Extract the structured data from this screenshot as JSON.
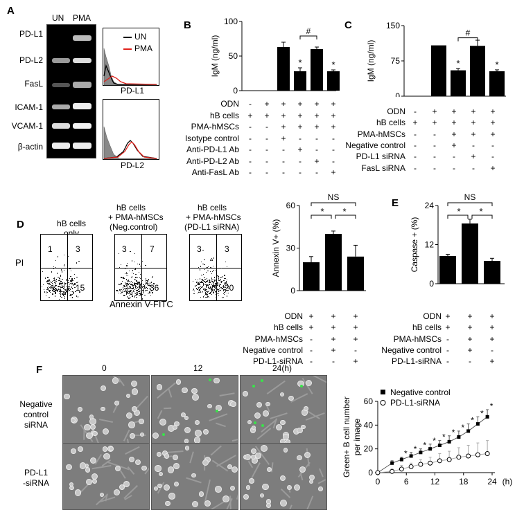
{
  "panels": {
    "A": "A",
    "B": "B",
    "C": "C",
    "D": "D",
    "E": "E",
    "F": "F"
  },
  "panel_a": {
    "columns": [
      "UN",
      "PMA"
    ],
    "genes": [
      "PD-L1",
      "PD-L2",
      "FasL",
      "ICAM-1",
      "VCAM-1",
      "β-actin"
    ],
    "hist_legend": [
      "UN",
      "PMA"
    ],
    "hist_labels": [
      "PD-L1",
      "PD-L2"
    ],
    "colors": {
      "UN": "#000000",
      "PMA": "#e0201a"
    }
  },
  "chart_data": [
    {
      "panel": "B",
      "type": "bar",
      "ylabel": "IgM (ng/ml)",
      "ylim": [
        0,
        100
      ],
      "yticks": [
        0,
        50,
        100
      ],
      "values": [
        0,
        63,
        28,
        60,
        28,
        28
      ],
      "errors": [
        0,
        7,
        5,
        3,
        2,
        2
      ],
      "stars": [
        "",
        "",
        "*",
        "",
        "*",
        "*"
      ],
      "bracket": "#",
      "rows": [
        {
          "label": "ODN",
          "signs": [
            "-",
            "+",
            "+",
            "+",
            "+",
            "+"
          ]
        },
        {
          "label": "hB cells",
          "signs": [
            "+",
            "+",
            "+",
            "+",
            "+",
            "+"
          ]
        },
        {
          "label": "PMA-hMSCs",
          "signs": [
            "-",
            "-",
            "+",
            "+",
            "+",
            "+"
          ]
        },
        {
          "label": "Isotype control",
          "signs": [
            "-",
            "-",
            "+",
            "-",
            "-",
            "-"
          ]
        },
        {
          "label": "Anti-PD-L1 Ab",
          "signs": [
            "-",
            "-",
            "-",
            "+",
            "-",
            "-"
          ]
        },
        {
          "label": "Anti-PD-L2 Ab",
          "signs": [
            "-",
            "-",
            "-",
            "-",
            "+",
            "-"
          ]
        },
        {
          "label": "Anti-FasL Ab",
          "signs": [
            "-",
            "-",
            "-",
            "-",
            "-",
            "+"
          ]
        }
      ]
    },
    {
      "panel": "C",
      "type": "bar",
      "ylabel": "IgM (ng/ml)",
      "ylim": [
        0,
        150
      ],
      "yticks": [
        0,
        75,
        150
      ],
      "values": [
        0,
        108,
        55,
        107,
        53
      ],
      "errors": [
        0,
        0,
        4,
        12,
        3
      ],
      "stars": [
        "",
        "",
        "*",
        "",
        "*"
      ],
      "bracket": "#",
      "rows": [
        {
          "label": "ODN",
          "signs": [
            "-",
            "+",
            "+",
            "+",
            "+"
          ]
        },
        {
          "label": "hB cells",
          "signs": [
            "+",
            "+",
            "+",
            "+",
            "+"
          ]
        },
        {
          "label": "PMA-hMSCs",
          "signs": [
            "-",
            "-",
            "+",
            "+",
            "+"
          ]
        },
        {
          "label": "Negative control",
          "signs": [
            "-",
            "-",
            "+",
            "-",
            "-"
          ]
        },
        {
          "label": "PD-L1 siRNA",
          "signs": [
            "-",
            "-",
            "-",
            "+",
            "-"
          ]
        },
        {
          "label": "FasL siRNA",
          "signs": [
            "-",
            "-",
            "-",
            "-",
            "+"
          ]
        }
      ]
    },
    {
      "panel": "D",
      "type": "bar",
      "ylabel": "Annexin V+ (%)",
      "ylim": [
        0,
        60
      ],
      "yticks": [
        0,
        30,
        60
      ],
      "values": [
        20,
        40,
        24
      ],
      "errors": [
        4,
        2,
        8
      ],
      "ns": "NS",
      "stars": [
        "*",
        "*"
      ],
      "rows": [
        {
          "label": "ODN",
          "signs": [
            "+",
            "+",
            "+"
          ]
        },
        {
          "label": "hB cells",
          "signs": [
            "+",
            "+",
            "+"
          ]
        },
        {
          "label": "PMA-hMSCs",
          "signs": [
            "-",
            "+",
            "+"
          ]
        },
        {
          "label": "Negative control",
          "signs": [
            "-",
            "+",
            "-"
          ]
        },
        {
          "label": "PD-L1-siRNA",
          "signs": [
            "-",
            "-",
            "+"
          ]
        }
      ]
    },
    {
      "panel": "E",
      "type": "bar",
      "ylabel": "Caspase + (%)",
      "ylim": [
        0,
        24
      ],
      "yticks": [
        0,
        12,
        24
      ],
      "values": [
        8.5,
        18.5,
        7
      ],
      "errors": [
        0.5,
        1.3,
        0.8
      ],
      "ns": "NS",
      "stars": [
        "*",
        "*"
      ],
      "rows": [
        {
          "label": "ODN",
          "signs": [
            "+",
            "+",
            "+"
          ]
        },
        {
          "label": "hB cells",
          "signs": [
            "+",
            "+",
            "+"
          ]
        },
        {
          "label": "PMA-hMSCs",
          "signs": [
            "-",
            "+",
            "+"
          ]
        },
        {
          "label": "Negative control",
          "signs": [
            "-",
            "+",
            "-"
          ]
        },
        {
          "label": "PD-L1-siRNA",
          "signs": [
            "-",
            "-",
            "+"
          ]
        }
      ]
    },
    {
      "panel": "F",
      "type": "line",
      "ylabel": "Green+ B cell number per image",
      "xlabel": "(h)",
      "ylim": [
        0,
        60
      ],
      "yticks": [
        0,
        20,
        40,
        60
      ],
      "xlim": [
        0,
        24
      ],
      "xticks": [
        0,
        6,
        12,
        18,
        24
      ],
      "x": [
        0,
        3,
        5,
        7,
        9,
        11,
        13,
        15,
        17,
        19,
        21,
        23
      ],
      "series": [
        {
          "name": "Negative control",
          "marker": "filled-square",
          "values": [
            0,
            8,
            11,
            14,
            17,
            20,
            23,
            26,
            30,
            35,
            41,
            47
          ],
          "errors": [
            0,
            2,
            2,
            3,
            3,
            4,
            4,
            5,
            5,
            6,
            6,
            6
          ],
          "stars": [
            "",
            "",
            "*",
            "*",
            "*",
            "*",
            "*",
            "*",
            "*",
            "*",
            "*",
            "*"
          ]
        },
        {
          "name": "PD-L1-siRNA",
          "marker": "open-circle",
          "values": [
            0,
            1,
            3,
            5,
            7,
            8,
            10,
            11,
            13,
            14,
            15,
            16
          ],
          "errors": [
            0,
            2,
            3,
            3,
            4,
            5,
            6,
            7,
            8,
            9,
            10,
            11
          ]
        }
      ]
    }
  ],
  "panel_d_facs": {
    "titles": [
      [
        "hB cells",
        "only"
      ],
      [
        "hB cells",
        "+ PMA-hMSCs",
        "(Neg.control)"
      ],
      [
        "hB cells",
        "+ PMA-hMSCs",
        "(PD-L1 siRNA)"
      ]
    ],
    "quadrants": [
      [
        "1",
        "3",
        "",
        "15"
      ],
      [
        "3",
        "7",
        "",
        "36"
      ],
      [
        "3",
        "3",
        "",
        "20"
      ]
    ],
    "ylabel": "PI",
    "xlabel": "Annexin V-FITC"
  },
  "panel_f_images": {
    "times": [
      "0",
      "12",
      "24(h)"
    ],
    "rows": [
      [
        "Negative",
        "control",
        "siRNA"
      ],
      [
        "PD-L1",
        "-siRNA"
      ]
    ]
  }
}
